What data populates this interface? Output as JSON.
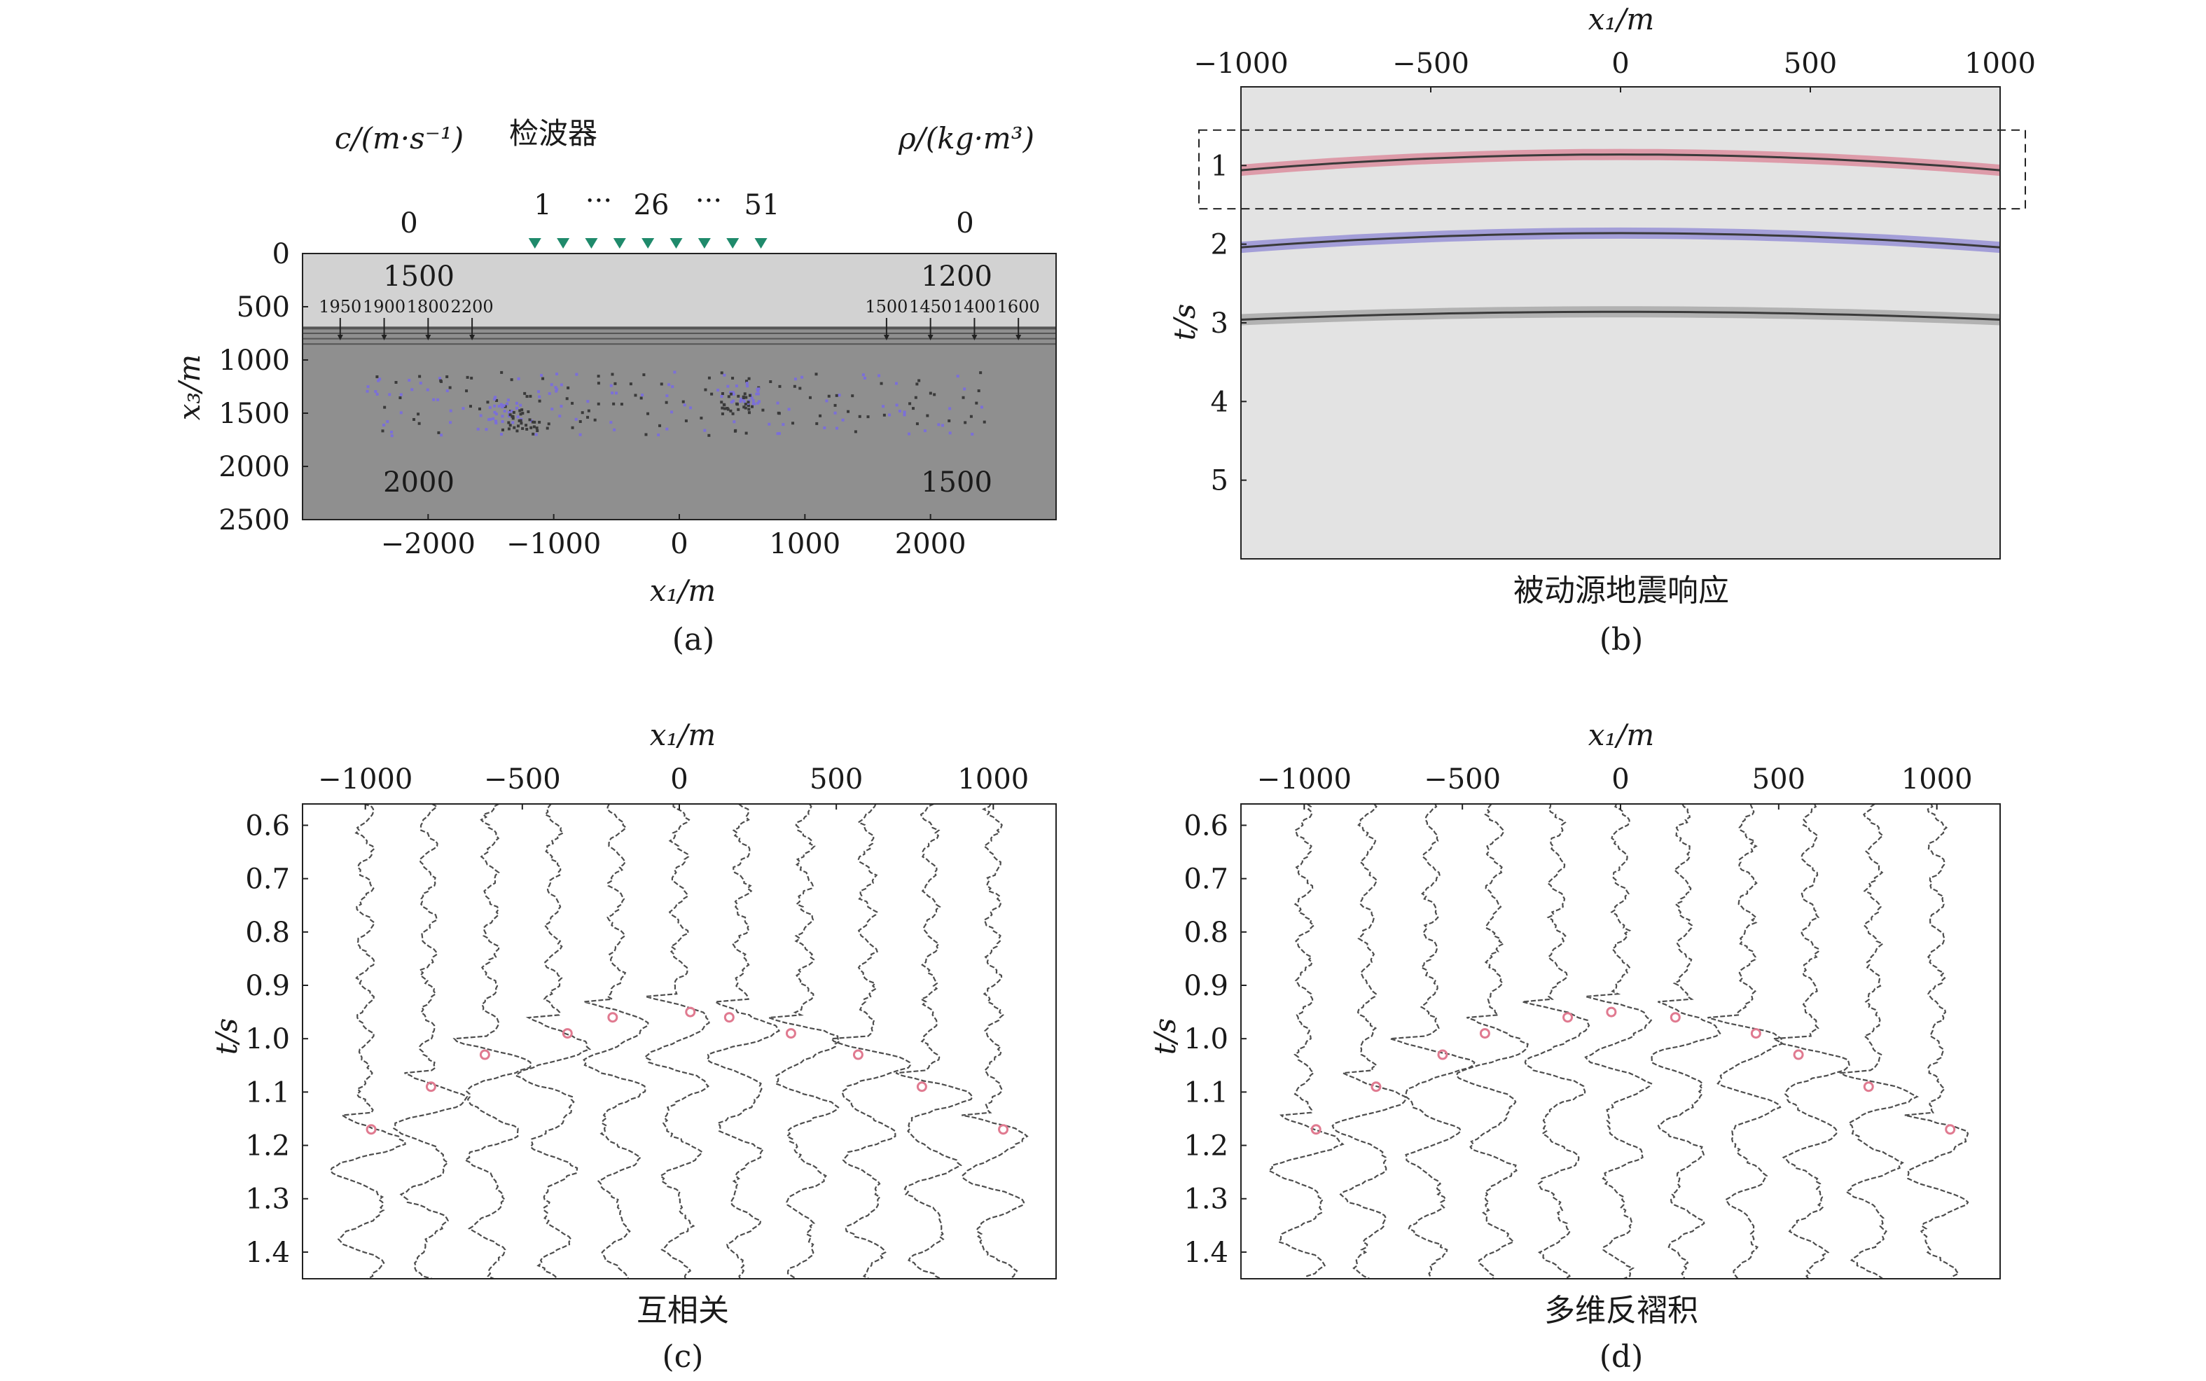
{
  "panels": {
    "a": {
      "caption": "(a)",
      "header_left_label": "c/(m·s⁻¹)",
      "header_mid_label": "检波器",
      "header_right_label": "ρ/(kg·m³)",
      "header_left_value": "0",
      "header_right_value": "0",
      "receiver_first": "1",
      "receiver_dots1": "···",
      "receiver_mid": "26",
      "receiver_dots2": "···",
      "receiver_last": "51",
      "xlabel": "x₁/m",
      "ylabel": "x₃/m",
      "top_left_velocity": "1500",
      "top_right_density": "1200",
      "bottom_left_velocity": "2000",
      "bottom_right_density": "1500",
      "layer_velocities": [
        "1950",
        "1900",
        "1800",
        "2200"
      ],
      "layer_densities": [
        "1500",
        "1450",
        "1400",
        "1600"
      ],
      "colors": {
        "upper": "#d2d2d2",
        "lower": "#8f8f8f",
        "receiver": "#1f8a6b",
        "scatter_purple": "#7b6fd8",
        "scatter_dark": "#3a3a3a"
      }
    },
    "b": {
      "caption": "(b)",
      "subtitle": "被动源地震响应",
      "xlabel": "x₁/m",
      "ylabel": "t/s",
      "colors": {
        "background": "#e3e3e3",
        "event1": "#d9607a",
        "event2": "#6f66cf",
        "event3": "#8a8a8a"
      }
    },
    "c": {
      "caption": "(c)",
      "subtitle": "互相关",
      "xlabel": "x₁/m",
      "ylabel": "t/s"
    },
    "d": {
      "caption": "(d)",
      "subtitle": "多维反褶积",
      "xlabel": "x₁/m",
      "ylabel": "t/s"
    }
  },
  "chart_data": [
    {
      "id": "a",
      "type": "heatmap",
      "xlim": [
        -3000,
        3000
      ],
      "ylim": [
        2500,
        0
      ],
      "x_ticks": [
        -2000,
        -1000,
        0,
        1000,
        2000
      ],
      "x_tick_labels": [
        "−2000",
        "−1000",
        "0",
        "1000",
        "2000"
      ],
      "y_ticks": [
        0,
        500,
        1000,
        1500,
        2000,
        2500
      ],
      "y_tick_labels": [
        "0",
        "500",
        "1000",
        "1500",
        "2000",
        "2500"
      ],
      "upper_layer_bottom_depth": 700,
      "thin_layer_depths": [
        700,
        750,
        800,
        850
      ],
      "scatter_zone_depth": [
        1100,
        1700
      ],
      "scatter_zone_x": [
        -2500,
        2500
      ],
      "receiver_x": [
        -1150,
        -925,
        -700,
        -475,
        -250,
        -25,
        200,
        425,
        650
      ],
      "layer_arrow_x_left": [
        -2700,
        -2350,
        -2000,
        -1650
      ],
      "layer_arrow_x_right": [
        1650,
        2000,
        2350,
        2700
      ]
    },
    {
      "id": "b",
      "type": "heatmap",
      "xlim": [
        -1000,
        1000
      ],
      "ylim": [
        6,
        0
      ],
      "x_ticks": [
        -1000,
        -500,
        0,
        500,
        1000
      ],
      "x_tick_labels": [
        "−1000",
        "−500",
        "0",
        "500",
        "1000"
      ],
      "y_ticks": [
        1,
        2,
        3,
        4,
        5
      ],
      "y_tick_labels": [
        "1",
        "2",
        "3",
        "4",
        "5"
      ],
      "events": [
        {
          "t0": 0.86,
          "t_edge": 1.06,
          "color": "#d9607a"
        },
        {
          "t0": 1.86,
          "t_edge": 2.04,
          "color": "#6f66cf"
        },
        {
          "t0": 2.86,
          "t_edge": 2.96,
          "color": "#8a8a8a"
        }
      ],
      "highlight_box_t": [
        0.55,
        1.55
      ]
    },
    {
      "id": "c",
      "type": "line",
      "xlim": [
        -1200,
        1200
      ],
      "ylim": [
        1.45,
        0.56
      ],
      "x_ticks": [
        -1000,
        -500,
        0,
        500,
        1000
      ],
      "x_tick_labels": [
        "−1000",
        "−500",
        "0",
        "500",
        "1000"
      ],
      "y_ticks": [
        0.6,
        0.7,
        0.8,
        0.9,
        1.0,
        1.1,
        1.2,
        1.3,
        1.4
      ],
      "y_tick_labels": [
        "0.6",
        "0.7",
        "0.8",
        "0.9",
        "1.0",
        "1.1",
        "1.2",
        "1.3",
        "1.4"
      ],
      "trace_x": [
        -1000,
        -800,
        -600,
        -400,
        -200,
        0,
        200,
        400,
        600,
        800,
        1000
      ],
      "trace_onset_t": [
        1.16,
        1.08,
        1.02,
        0.98,
        0.95,
        0.94,
        0.95,
        0.98,
        1.02,
        1.08,
        1.16
      ]
    },
    {
      "id": "d",
      "type": "line",
      "xlim": [
        -1200,
        1200
      ],
      "ylim": [
        1.45,
        0.56
      ],
      "x_ticks": [
        -1000,
        -500,
        0,
        500,
        1000
      ],
      "x_tick_labels": [
        "−1000",
        "−500",
        "0",
        "500",
        "1000"
      ],
      "y_ticks": [
        0.6,
        0.7,
        0.8,
        0.9,
        1.0,
        1.1,
        1.2,
        1.3,
        1.4
      ],
      "y_tick_labels": [
        "0.6",
        "0.7",
        "0.8",
        "0.9",
        "1.0",
        "1.1",
        "1.2",
        "1.3",
        "1.4"
      ],
      "trace_x": [
        -1000,
        -800,
        -600,
        -400,
        -200,
        0,
        200,
        400,
        600,
        800,
        1000
      ],
      "trace_onset_t": [
        1.16,
        1.08,
        1.02,
        0.98,
        0.95,
        0.94,
        0.95,
        0.98,
        1.02,
        1.08,
        1.16
      ]
    }
  ]
}
